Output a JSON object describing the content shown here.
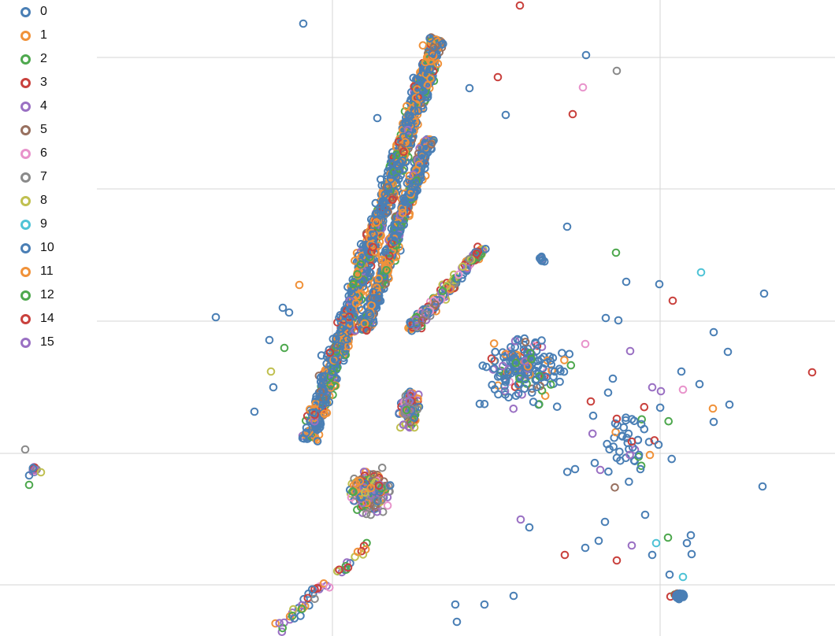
{
  "chart_data": {
    "type": "scatter",
    "title": "",
    "xlabel": "",
    "ylabel": "",
    "grid": true,
    "legend_position": "top-left",
    "marker": "hollow-circle",
    "xlim": [
      0,
      1060
    ],
    "ylim": [
      0,
      808
    ],
    "x_gridlines": [
      422,
      838
    ],
    "y_gridlines": [
      73,
      240,
      408,
      576,
      743
    ],
    "colors": {
      "0": "#4a7fb5",
      "1": "#f0923a",
      "2": "#4ea84e",
      "3": "#c9413d",
      "4": "#9a70c3",
      "5": "#98705f",
      "6": "#e893cb",
      "7": "#8a8a8a",
      "8": "#c0c050",
      "9": "#4fc3d6",
      "10": "#4a7fb5",
      "11": "#f0923a",
      "12": "#4ea84e",
      "14": "#c9413d",
      "15": "#9a70c3"
    },
    "legend": [
      "0",
      "1",
      "2",
      "3",
      "4",
      "5",
      "6",
      "7",
      "8",
      "9",
      "10",
      "11",
      "12",
      "14",
      "15"
    ],
    "clusters": [
      {
        "name": "northwest-band",
        "type": "band",
        "from": [
          392,
          560
        ],
        "to": [
          555,
          50
        ],
        "width": 42,
        "count": 1500,
        "mix": "blue-orange"
      },
      {
        "name": "northeast-band",
        "type": "band",
        "from": [
          462,
          420
        ],
        "to": [
          545,
          175
        ],
        "width": 32,
        "count": 600,
        "mix": "blue-orange"
      },
      {
        "name": "east-arm",
        "type": "band",
        "from": [
          520,
          420
        ],
        "to": [
          615,
          315
        ],
        "width": 28,
        "count": 180,
        "mix": "mixed"
      },
      {
        "name": "south-lower",
        "type": "blob",
        "center": [
          470,
          625
        ],
        "spread": [
          45,
          45
        ],
        "count": 260,
        "mix": "mixed"
      },
      {
        "name": "south-upper",
        "type": "blob",
        "center": [
          520,
          520
        ],
        "spread": [
          25,
          45
        ],
        "count": 120,
        "mix": "mixed"
      },
      {
        "name": "east-scatter",
        "type": "blob",
        "center": [
          665,
          470
        ],
        "spread": [
          90,
          80
        ],
        "count": 200,
        "mix": "blue-heavy"
      },
      {
        "name": "far-east-scatter",
        "type": "blob",
        "center": [
          800,
          560
        ],
        "spread": [
          120,
          110
        ],
        "count": 50,
        "mix": "blue-heavy"
      },
      {
        "name": "southeast-cluster",
        "type": "blob",
        "center": [
          862,
          757
        ],
        "spread": [
          14,
          7
        ],
        "count": 35,
        "mix": "blue-heavy"
      },
      {
        "name": "east-node",
        "type": "blob",
        "center": [
          688,
          330
        ],
        "spread": [
          8,
          6
        ],
        "count": 10,
        "mix": "blue-heavy"
      },
      {
        "name": "west-node",
        "type": "blob",
        "center": [
          44,
          596
        ],
        "spread": [
          6,
          8
        ],
        "count": 12,
        "mix": "mixed"
      },
      {
        "name": "south-trail",
        "type": "band",
        "from": [
          350,
          800
        ],
        "to": [
          470,
          690
        ],
        "width": 30,
        "count": 50,
        "mix": "mixed"
      }
    ],
    "outliers": [
      [
        385,
        30,
        "10"
      ],
      [
        660,
        7,
        "3"
      ],
      [
        744,
        70,
        "0"
      ],
      [
        783,
        90,
        "7"
      ],
      [
        740,
        111,
        "6"
      ],
      [
        632,
        98,
        "3"
      ],
      [
        727,
        145,
        "3"
      ],
      [
        642,
        146,
        "0"
      ],
      [
        479,
        150,
        "0"
      ],
      [
        596,
        112,
        "0"
      ],
      [
        274,
        403,
        "0"
      ],
      [
        380,
        362,
        "1"
      ],
      [
        359,
        391,
        "0"
      ],
      [
        367,
        397,
        "0"
      ],
      [
        323,
        523,
        "0"
      ],
      [
        342,
        432,
        "0"
      ],
      [
        344,
        472,
        "8"
      ],
      [
        347,
        492,
        "0"
      ],
      [
        361,
        442,
        "2"
      ],
      [
        720,
        288,
        "0"
      ],
      [
        782,
        321,
        "2"
      ],
      [
        837,
        361,
        "0"
      ],
      [
        795,
        358,
        "0"
      ],
      [
        890,
        346,
        "9"
      ],
      [
        854,
        382,
        "3"
      ],
      [
        970,
        373,
        "0"
      ],
      [
        906,
        422,
        "0"
      ],
      [
        924,
        447,
        "0"
      ],
      [
        1031,
        473,
        "3"
      ],
      [
        865,
        472,
        "0"
      ],
      [
        888,
        488,
        "0"
      ],
      [
        867,
        495,
        "6"
      ],
      [
        839,
        497,
        "4"
      ],
      [
        926,
        514,
        "0"
      ],
      [
        905,
        519,
        "1"
      ],
      [
        906,
        536,
        "0"
      ],
      [
        825,
        578,
        "1"
      ],
      [
        836,
        565,
        "0"
      ],
      [
        813,
        596,
        "0"
      ],
      [
        968,
        618,
        "0"
      ],
      [
        819,
        654,
        "0"
      ],
      [
        768,
        663,
        "0"
      ],
      [
        743,
        696,
        "0"
      ],
      [
        760,
        687,
        "0"
      ],
      [
        717,
        705,
        "3"
      ],
      [
        783,
        712,
        "3"
      ],
      [
        802,
        693,
        "4"
      ],
      [
        833,
        690,
        "9"
      ],
      [
        848,
        683,
        "2"
      ],
      [
        828,
        705,
        "0"
      ],
      [
        877,
        680,
        "0"
      ],
      [
        872,
        690,
        "0"
      ],
      [
        878,
        704,
        "0"
      ],
      [
        850,
        730,
        "0"
      ],
      [
        867,
        733,
        "9"
      ],
      [
        652,
        757,
        "0"
      ],
      [
        578,
        768,
        "0"
      ],
      [
        615,
        768,
        "0"
      ],
      [
        580,
        790,
        "0"
      ],
      [
        32,
        571,
        "7"
      ],
      [
        37,
        604,
        "0"
      ],
      [
        37,
        616,
        "2"
      ],
      [
        52,
        600,
        "8"
      ],
      [
        785,
        407,
        "0"
      ],
      [
        769,
        404,
        "0"
      ],
      [
        743,
        437,
        "6"
      ],
      [
        800,
        446,
        "4"
      ],
      [
        778,
        481,
        "0"
      ],
      [
        750,
        510,
        "3"
      ],
      [
        783,
        532,
        "3"
      ],
      [
        802,
        561,
        "3"
      ],
      [
        762,
        597,
        "4"
      ],
      [
        730,
        596,
        "0"
      ],
      [
        661,
        660,
        "4"
      ],
      [
        672,
        670,
        "0"
      ]
    ]
  }
}
